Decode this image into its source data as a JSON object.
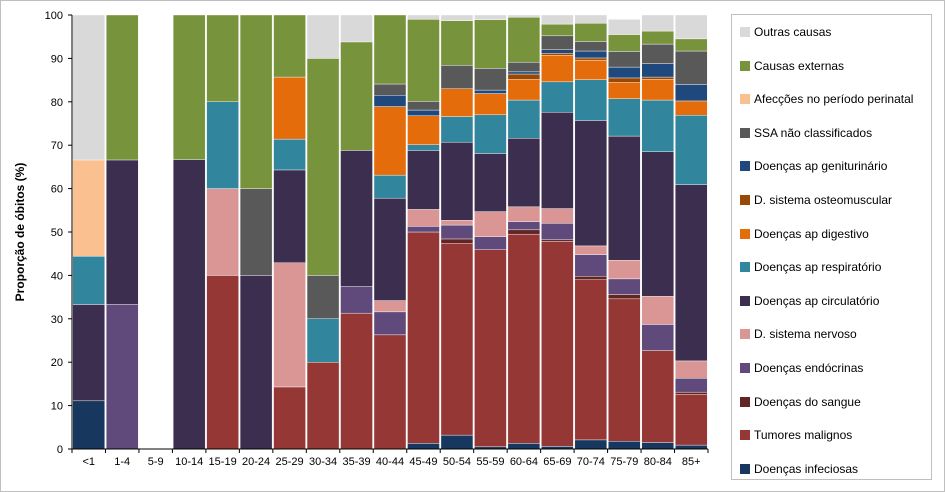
{
  "chart_data": {
    "type": "stacked-bar",
    "ylabel": "Proporção de óbitos (%)",
    "ylim": [
      0,
      100
    ],
    "yticks": [
      0,
      10,
      20,
      30,
      40,
      50,
      60,
      70,
      80,
      90,
      100
    ],
    "grid": false,
    "legend_position": "right",
    "categories": [
      "<1",
      "1-4",
      "5-9",
      "10-14",
      "15-19",
      "20-24",
      "25-29",
      "30-34",
      "35-39",
      "40-44",
      "45-49",
      "50-54",
      "55-59",
      "60-64",
      "65-69",
      "70-74",
      "75-79",
      "80-84",
      "85+"
    ],
    "series": [
      {
        "name": "Doenças infeciosas",
        "color": "#17375e",
        "values": [
          11.1,
          0,
          0,
          0,
          0,
          0,
          0,
          0,
          0,
          0,
          1.3,
          3.2,
          0.5,
          1.3,
          0.6,
          2.1,
          1.8,
          1.5,
          0.9
        ]
      },
      {
        "name": "Tumores malignos",
        "color": "#953735",
        "values": [
          0,
          0,
          0,
          0,
          40.0,
          0,
          14.3,
          20.0,
          31.3,
          26.3,
          48.7,
          44.2,
          45.4,
          48.2,
          47.2,
          36.9,
          32.8,
          21.2,
          11.7
        ]
      },
      {
        "name": "Doenças do sangue",
        "color": "#632523",
        "values": [
          0,
          0,
          0,
          0,
          0,
          0,
          0,
          0,
          0,
          0,
          0,
          1.0,
          0,
          1.0,
          0.4,
          0.8,
          1.0,
          0,
          0.5
        ]
      },
      {
        "name": "Doenças endócrinas",
        "color": "#604a7b",
        "values": [
          0,
          33.3,
          0,
          0,
          0,
          0,
          0,
          0,
          6.2,
          5.3,
          1.3,
          3.2,
          3.0,
          1.9,
          3.8,
          5.0,
          3.6,
          6.0,
          3.2
        ]
      },
      {
        "name": "D. sistema nervoso",
        "color": "#d99694",
        "values": [
          0,
          0,
          0,
          0,
          20.0,
          0,
          28.6,
          0,
          0,
          2.6,
          3.9,
          1.1,
          5.8,
          3.4,
          3.4,
          2.0,
          4.3,
          6.5,
          4.0
        ]
      },
      {
        "name": "Doenças ap circulatório",
        "color": "#3b2e4e",
        "values": [
          22.2,
          33.3,
          0,
          66.7,
          0,
          40.0,
          21.4,
          0,
          31.3,
          23.6,
          13.6,
          18.0,
          13.4,
          15.8,
          22.2,
          28.9,
          28.6,
          33.3,
          40.6
        ]
      },
      {
        "name": "Doenças ap respiratório",
        "color": "#31859c",
        "values": [
          11.1,
          0,
          0,
          0,
          20.0,
          0,
          7.1,
          10.0,
          0,
          5.3,
          1.3,
          5.9,
          8.9,
          8.8,
          7.0,
          9.4,
          8.6,
          11.9,
          16.0
        ]
      },
      {
        "name": "Doenças ap digestivo",
        "color": "#e46c0a",
        "values": [
          0,
          0,
          0,
          0,
          0,
          0,
          14.3,
          0,
          0,
          15.8,
          6.7,
          6.4,
          4.9,
          4.8,
          6.1,
          4.5,
          3.8,
          4.8,
          3.3
        ]
      },
      {
        "name": "D. sistema osteomuscular",
        "color": "#984807",
        "values": [
          0,
          0,
          0,
          0,
          0,
          0,
          0,
          0,
          0,
          0,
          0,
          0,
          0,
          1.2,
          0.5,
          0.5,
          1.0,
          0.5,
          0
        ]
      },
      {
        "name": "Doenças ap geniturinário",
        "color": "#1f497d",
        "values": [
          0,
          0,
          0,
          0,
          0,
          0,
          0,
          0,
          0,
          2.6,
          1.3,
          0,
          0.8,
          0.5,
          0.8,
          1.6,
          2.5,
          3.1,
          3.8
        ]
      },
      {
        "name": "SSA não classificados",
        "color": "#595959",
        "values": [
          0,
          0,
          0,
          0,
          0,
          20.0,
          0,
          10.0,
          0,
          2.6,
          2.0,
          5.4,
          5.0,
          2.2,
          3.2,
          2.2,
          3.6,
          4.5,
          7.7
        ]
      },
      {
        "name": "Afecções no período perinatal",
        "color": "#fac090",
        "values": [
          22.2,
          0,
          0,
          0,
          0,
          0,
          0,
          0,
          0,
          0,
          0,
          0,
          0,
          0,
          0,
          0,
          0,
          0,
          0
        ]
      },
      {
        "name": "Causas externas",
        "color": "#77933c",
        "values": [
          0,
          33.4,
          0,
          33.3,
          20.0,
          40.0,
          14.3,
          50.0,
          25.0,
          15.9,
          18.9,
          10.3,
          11.2,
          10.4,
          2.7,
          4.2,
          3.9,
          3.0,
          2.8
        ]
      },
      {
        "name": "Outras causas",
        "color": "#d9d9d9",
        "values": [
          33.4,
          0,
          0,
          0,
          0,
          0,
          0,
          10.0,
          6.2,
          0,
          1.0,
          1.3,
          1.1,
          0.5,
          2.1,
          1.9,
          3.5,
          3.7,
          5.5
        ]
      }
    ]
  }
}
